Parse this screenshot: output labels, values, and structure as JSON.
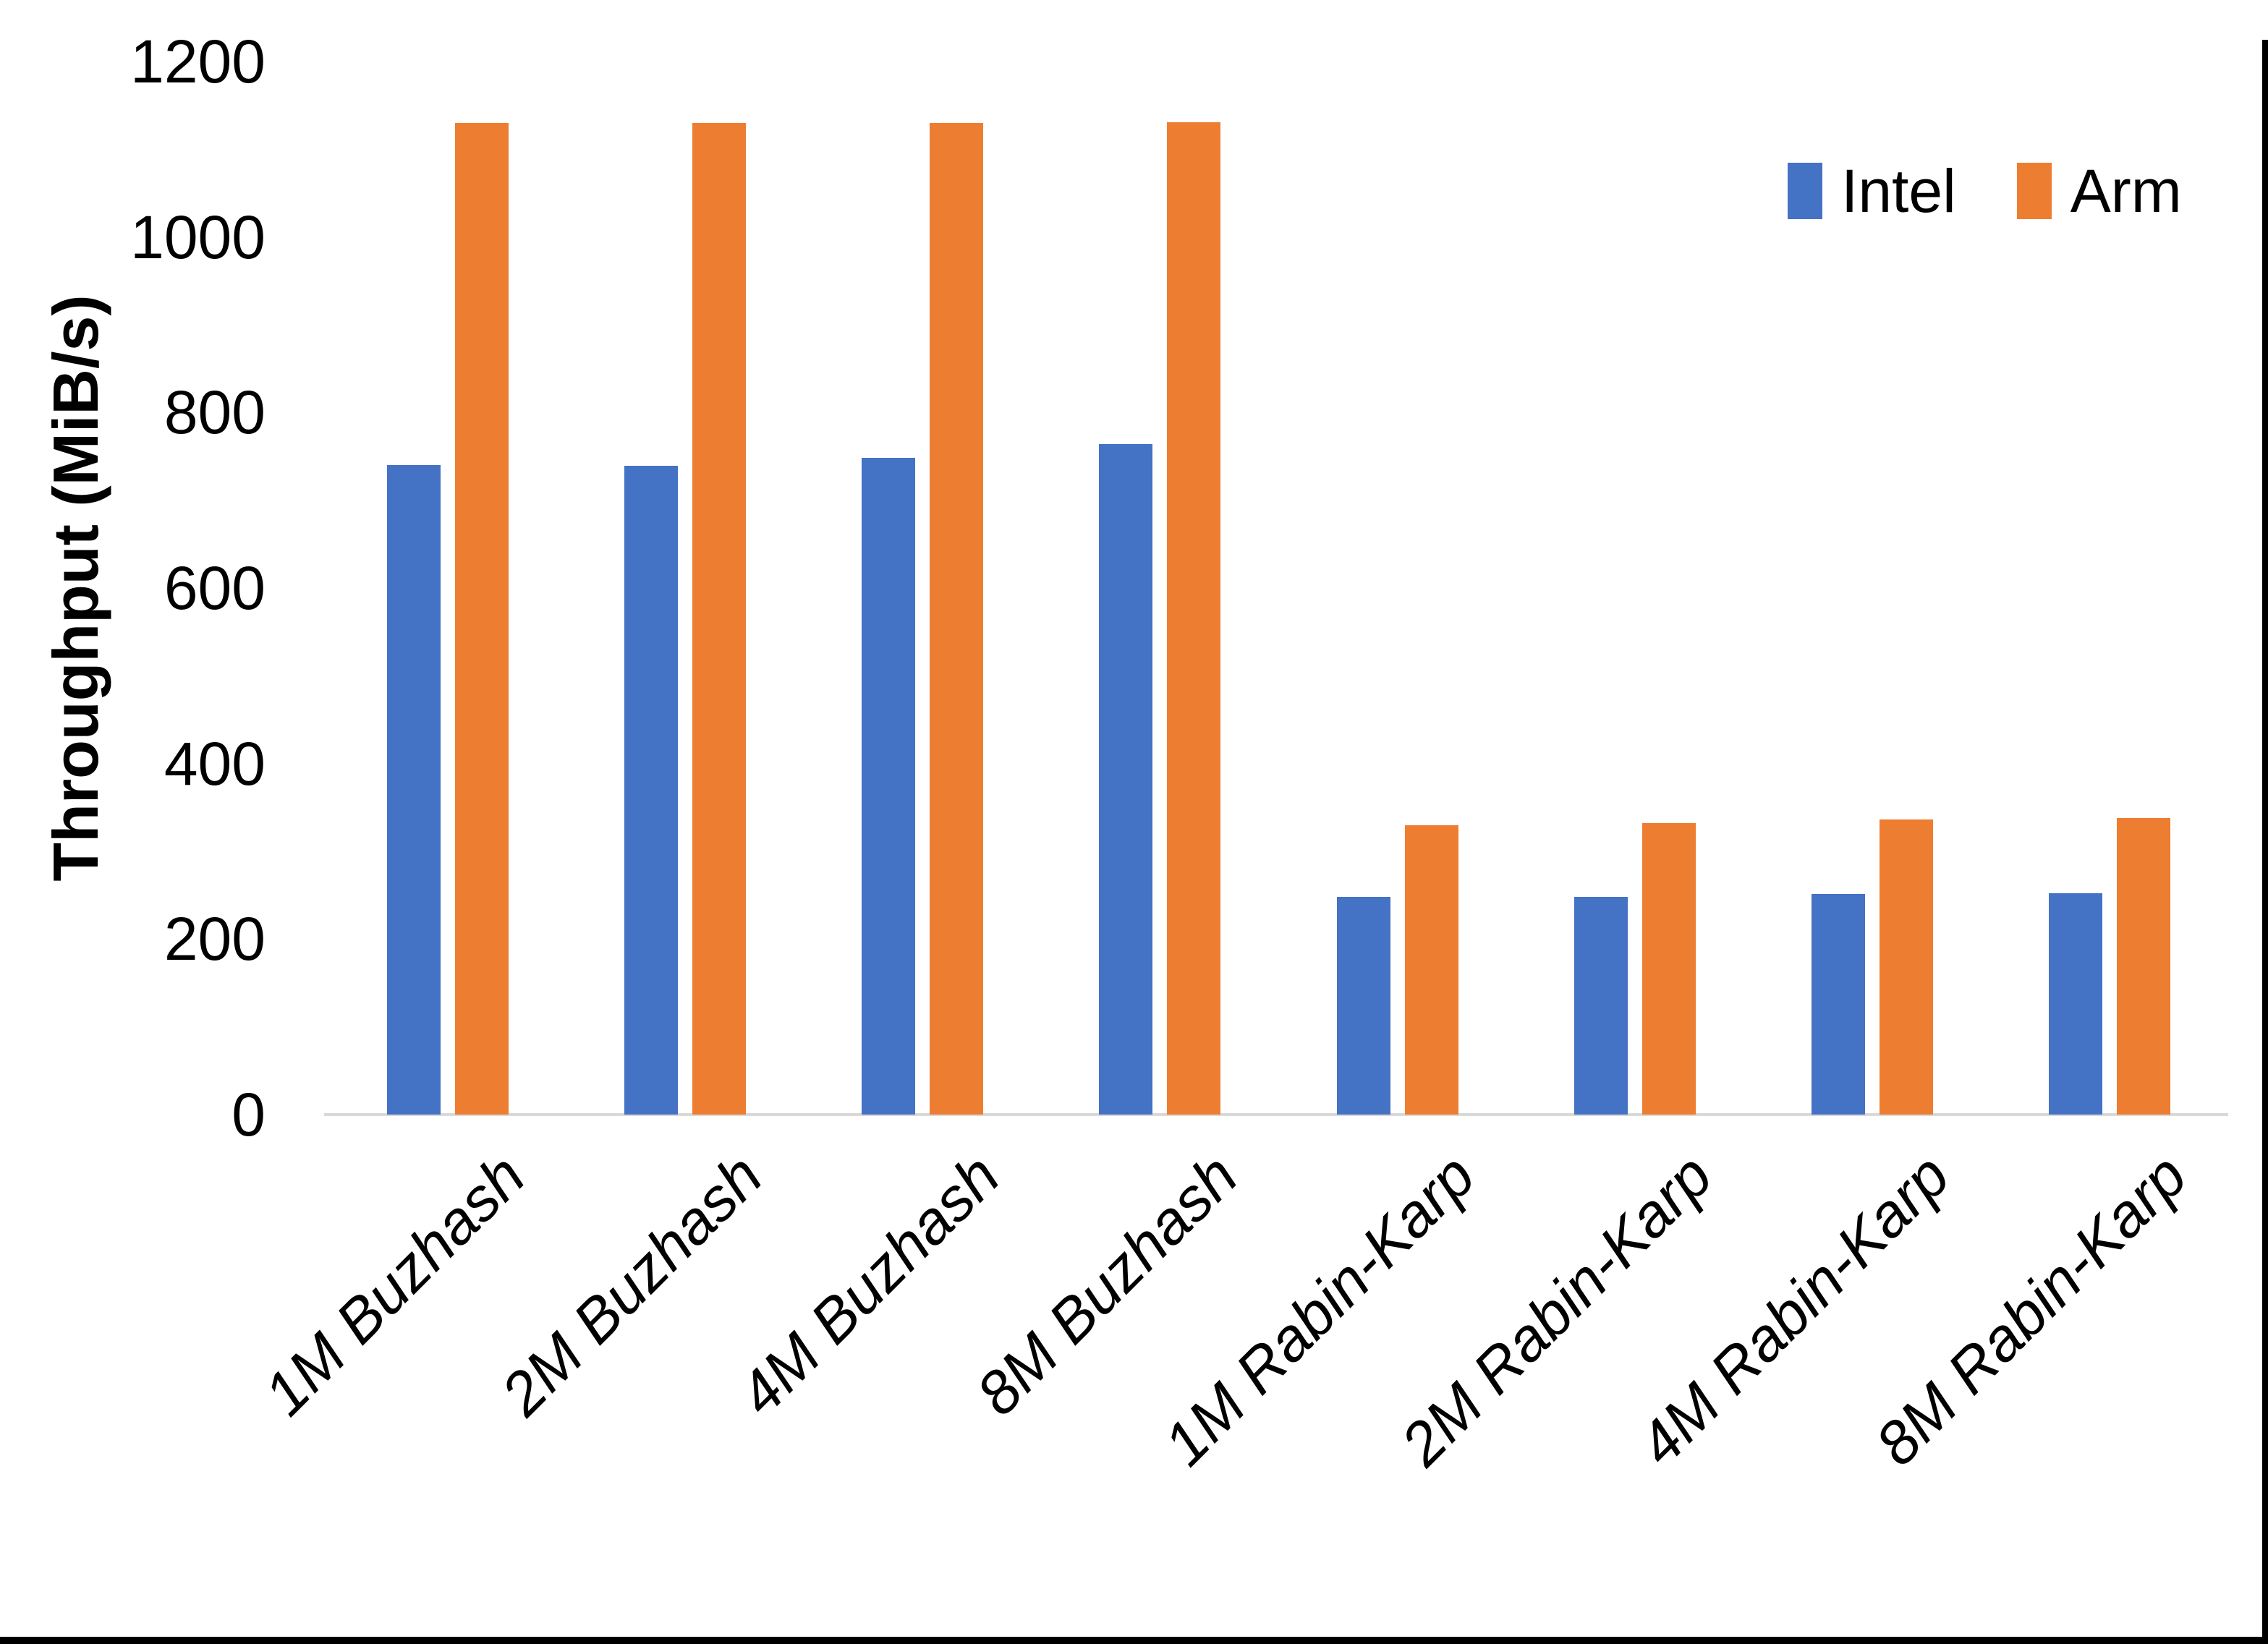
{
  "chart_data": {
    "type": "bar",
    "categories": [
      "1M Buzhash",
      "2M Buzhash",
      "4M Buzhash",
      "8M Buzhash",
      "1M Rabin-Karp",
      "2M Rabin-Karp",
      "4M Rabin-Karp",
      "8M Rabin-Karp"
    ],
    "series": [
      {
        "name": "Intel",
        "color": "#4472C4",
        "values": [
          740,
          739,
          748,
          764,
          248,
          248,
          251,
          252
        ]
      },
      {
        "name": "Arm",
        "color": "#ED7D31",
        "values": [
          1130,
          1130,
          1130,
          1131,
          330,
          332,
          336,
          338
        ]
      }
    ],
    "title": "",
    "xlabel": "",
    "ylabel": "Throughput (MiB/s)",
    "ylim": [
      0,
      1200
    ],
    "ytick_step": 200,
    "grid": "off",
    "legend_position": "top-right"
  },
  "axis": {
    "y_title": "Throughput (MiB/s)",
    "y_ticks": [
      "1200",
      "1000",
      "800",
      "600",
      "400",
      "200",
      "0"
    ]
  },
  "legend": {
    "items": [
      {
        "label": "Intel",
        "color": "#4472C4"
      },
      {
        "label": "Arm",
        "color": "#ED7D31"
      }
    ]
  },
  "frame": {
    "baseline_color": "#D9D9D9",
    "edge_color": "#000000",
    "background": "#FFFFFF"
  }
}
